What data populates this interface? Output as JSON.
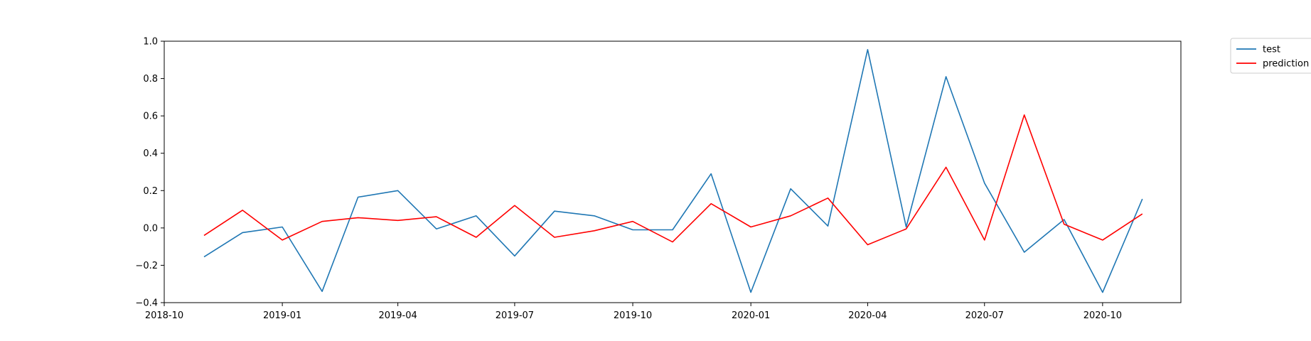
{
  "chart_data": {
    "type": "line",
    "title": "",
    "xlabel": "",
    "ylabel": "",
    "x": [
      "2018-11-01",
      "2018-12-01",
      "2019-01-01",
      "2019-02-01",
      "2019-03-01",
      "2019-04-01",
      "2019-05-01",
      "2019-06-01",
      "2019-07-01",
      "2019-08-01",
      "2019-09-01",
      "2019-10-01",
      "2019-11-01",
      "2019-12-01",
      "2020-01-01",
      "2020-02-01",
      "2020-03-01",
      "2020-04-01",
      "2020-05-01",
      "2020-06-01",
      "2020-07-01",
      "2020-08-01",
      "2020-09-01",
      "2020-10-01",
      "2020-11-01"
    ],
    "series": [
      {
        "name": "test",
        "color": "#1f77b4",
        "values": [
          -0.155,
          -0.025,
          0.005,
          -0.34,
          0.165,
          0.2,
          -0.005,
          0.065,
          -0.15,
          0.09,
          0.065,
          -0.01,
          -0.01,
          0.29,
          -0.345,
          0.21,
          0.01,
          0.955,
          0.005,
          0.81,
          0.24,
          -0.13,
          0.045,
          -0.345,
          0.155
        ]
      },
      {
        "name": "prediction",
        "color": "#ff0000",
        "values": [
          -0.04,
          0.095,
          -0.065,
          0.035,
          0.055,
          0.04,
          0.06,
          -0.05,
          0.12,
          -0.05,
          -0.015,
          0.035,
          -0.075,
          0.13,
          0.005,
          0.065,
          0.16,
          -0.09,
          -0.005,
          0.325,
          -0.065,
          0.605,
          0.02,
          -0.065,
          0.075
        ]
      }
    ],
    "xlim": [
      "2018-10-01",
      "2020-12-01"
    ],
    "ylim": [
      -0.4,
      1.0
    ],
    "xticks": [
      "2018-10",
      "2019-01",
      "2019-04",
      "2019-07",
      "2019-10",
      "2020-01",
      "2020-04",
      "2020-07",
      "2020-10"
    ],
    "yticks": [
      "−0.4",
      "−0.2",
      "0.0",
      "0.2",
      "0.4",
      "0.6",
      "0.8",
      "1.0"
    ],
    "grid": false,
    "legend": "upper-right-outside"
  }
}
